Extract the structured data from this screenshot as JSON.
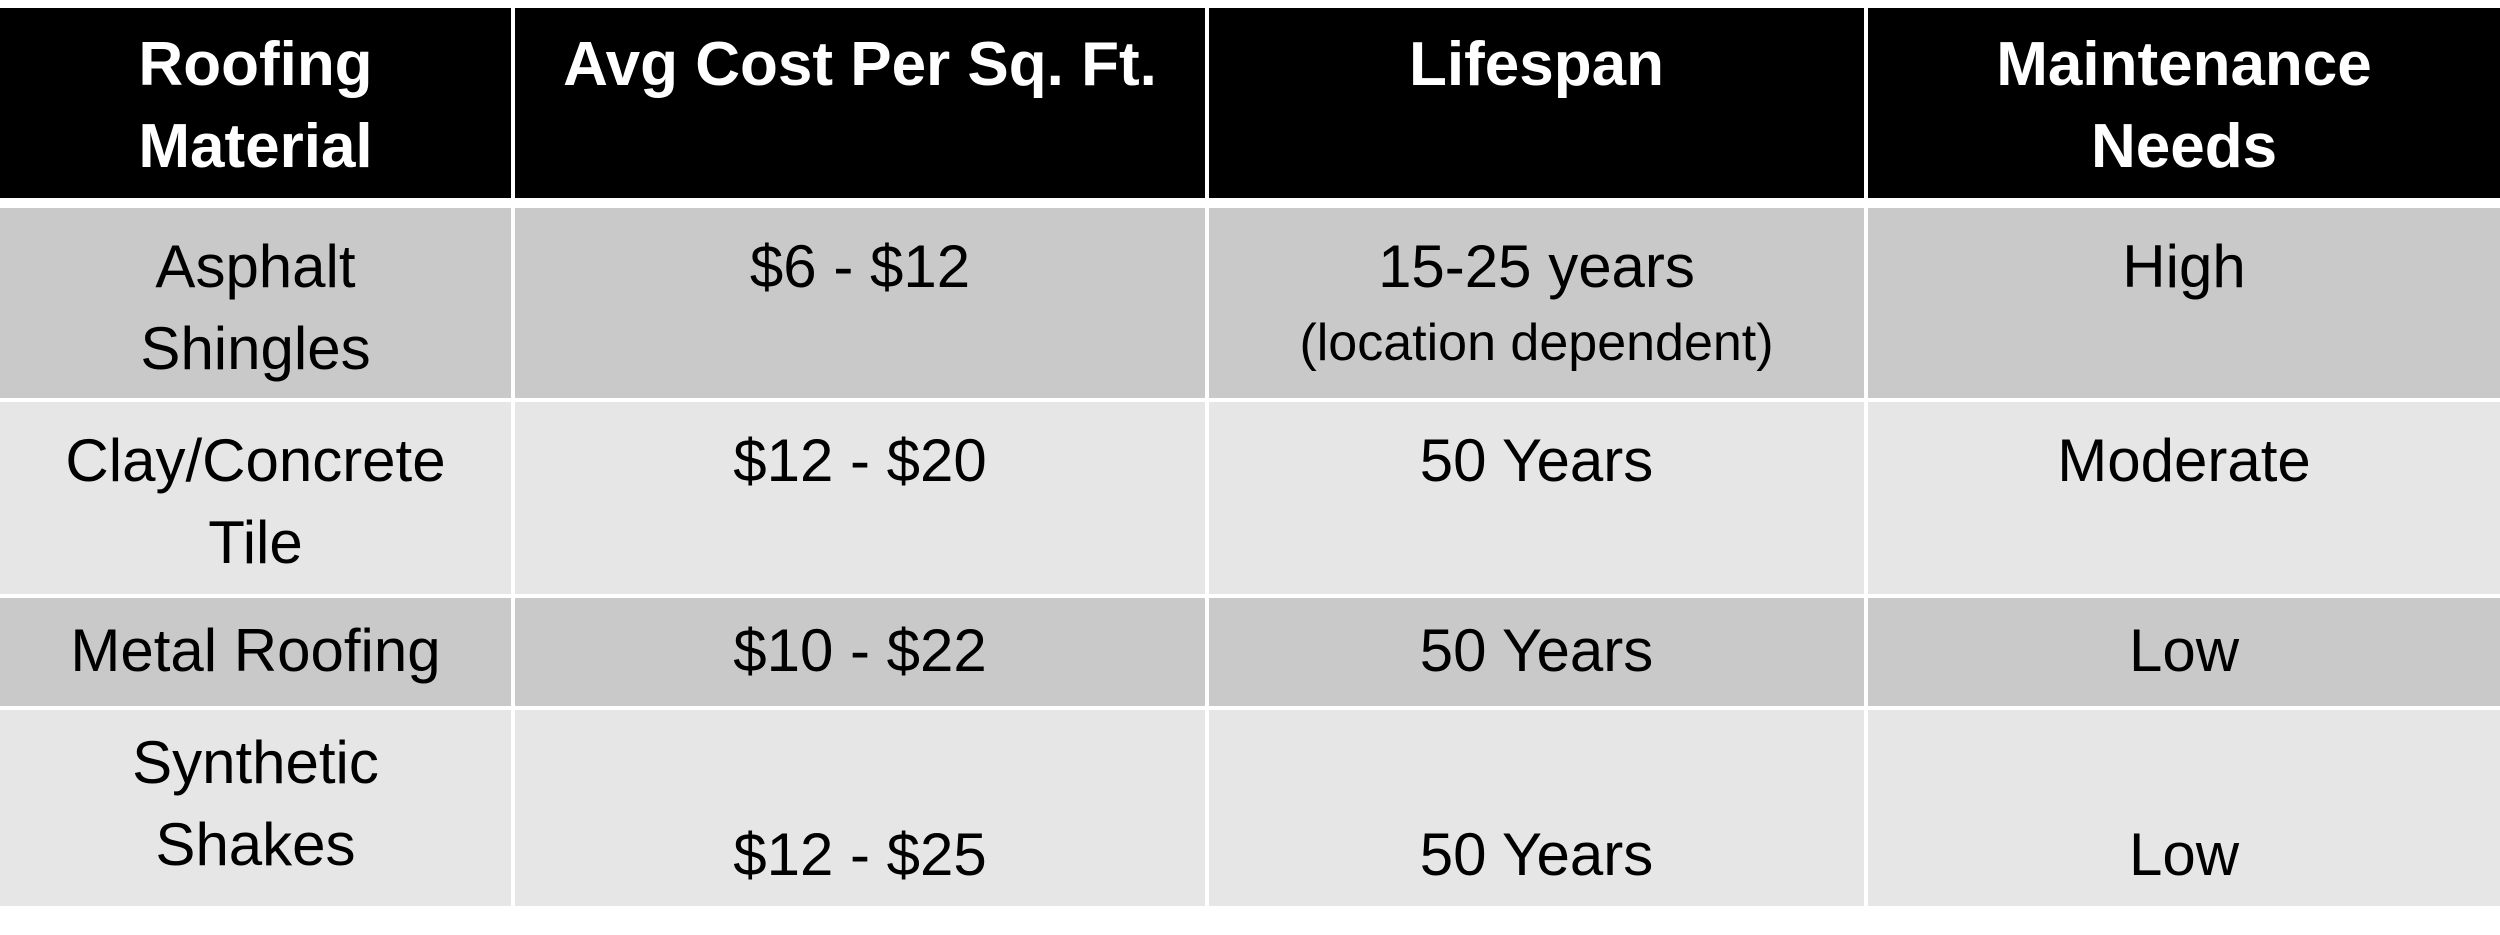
{
  "table": {
    "headers": [
      [
        "Roofing",
        "Material"
      ],
      [
        "Avg Cost Per Sq. Ft."
      ],
      [
        "Lifespan"
      ],
      [
        "Maintenance",
        "Needs"
      ]
    ],
    "rows": [
      {
        "material": [
          "Asphalt",
          "Shingles"
        ],
        "cost": "$6 - $12",
        "lifespan": "15-25 years",
        "lifespan_note": "(location dependent)",
        "maintenance": "High"
      },
      {
        "material": [
          "Clay/Concrete",
          "Tile"
        ],
        "cost": "$12 - $20",
        "lifespan": "50 Years",
        "maintenance": "Moderate"
      },
      {
        "material": [
          "Metal Roofing"
        ],
        "cost": "$10 - $22",
        "lifespan": "50 Years",
        "maintenance": "Low"
      },
      {
        "material": [
          "Synthetic",
          "Shakes"
        ],
        "cost": "$12 - $25",
        "lifespan": "50 Years",
        "maintenance": "Low"
      }
    ],
    "colors": {
      "header_bg": "#000000",
      "header_text": "#ffffff",
      "row_dark": "#c9c9c9",
      "row_light": "#e6e6e6"
    }
  }
}
